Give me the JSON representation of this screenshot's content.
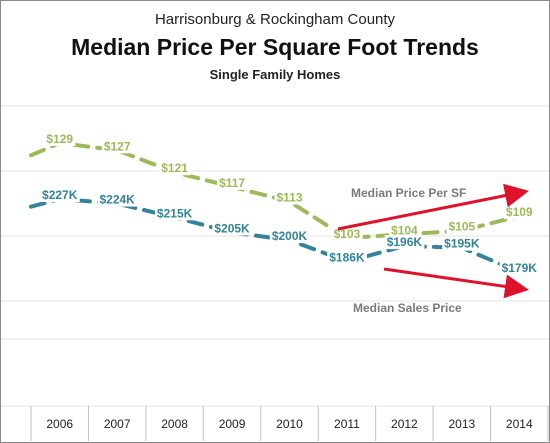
{
  "chart_data": {
    "type": "line",
    "title_line1": "Harrisonburg & Rockingham County",
    "title": "Median Price Per Square Foot Trends",
    "subtitle": "Single Family Homes",
    "categories": [
      "2006",
      "2007",
      "2008",
      "2009",
      "2010",
      "2011",
      "2012",
      "2013",
      "2014"
    ],
    "series": [
      {
        "name": "Median Price Per SF",
        "color": "#9bbb59",
        "values": [
          129,
          127,
          121,
          117,
          113,
          103,
          104,
          105,
          109
        ],
        "labels": [
          "$129",
          "$127",
          "$121",
          "$117",
          "$113",
          "$103",
          "$104",
          "$105",
          "$109"
        ]
      },
      {
        "name": "Median Sales Price",
        "color": "#31849b",
        "values": [
          227,
          224,
          215,
          205,
          200,
          186,
          196,
          195,
          179
        ],
        "labels": [
          "$227K",
          "$224K",
          "$215K",
          "$205K",
          "$200K",
          "$186K",
          "$196K",
          "$195K",
          "$179K"
        ]
      }
    ],
    "annotations": [
      "Median Price Per SF",
      "Median Sales Price"
    ],
    "arrow_color": "#e0112b",
    "grid": true,
    "line_style": "dashed"
  }
}
